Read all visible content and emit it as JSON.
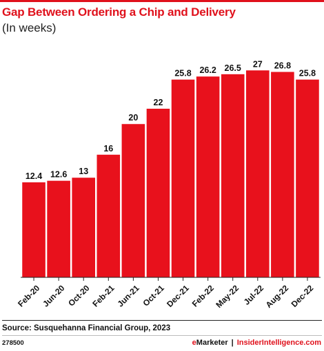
{
  "header": {
    "title": "Gap Between Ordering a Chip and Delivery",
    "subtitle": "(In weeks)"
  },
  "footer": {
    "source": "Source: Susquehanna Financial Group, 2023",
    "chart_id": "278500",
    "brand_left_e": "e",
    "brand_left_rest": "Marketer",
    "brand_separator": "|",
    "brand_right": "InsiderIntelligence.com"
  },
  "colors": {
    "bar": "#e8111c",
    "accent": "#e0111c"
  },
  "chart_data": {
    "type": "bar",
    "title": "Gap Between Ordering a Chip and Delivery",
    "subtitle": "(In weeks)",
    "categories": [
      "Feb-20",
      "Jun-20",
      "Oct-20",
      "Feb-21",
      "Jun-21",
      "Oct-21",
      "Dec-21",
      "Feb-22",
      "May-22",
      "Jul-22",
      "Aug-22",
      "Dec-22"
    ],
    "values": [
      12.4,
      12.6,
      13,
      16,
      20,
      22,
      25.8,
      26.2,
      26.5,
      27,
      26.8,
      25.8
    ],
    "value_labels": [
      "12.4",
      "12.6",
      "13",
      "16",
      "20",
      "22",
      "25.8",
      "26.2",
      "26.5",
      "27",
      "26.8",
      "25.8"
    ],
    "xlabel": "",
    "ylabel": "",
    "ylim": [
      0,
      29
    ],
    "grid": false,
    "legend": "none"
  }
}
